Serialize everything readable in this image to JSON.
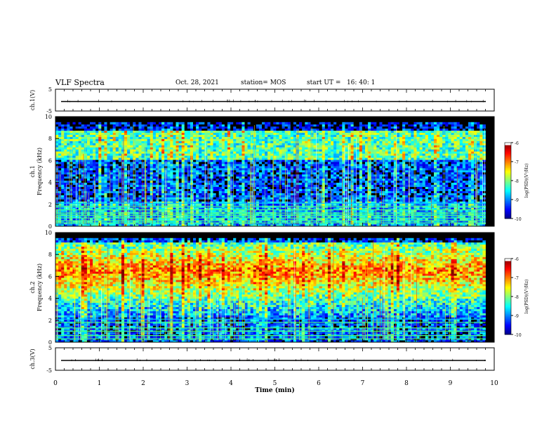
{
  "header": {
    "title": "VLF Spectra",
    "date": "Oct. 28, 2021",
    "station": "station= MOS",
    "start_ut": "start UT =   16: 40: 1"
  },
  "chart_data": [
    {
      "type": "line",
      "panel": "ch1-waveform",
      "ylabel": "ch.1(V)",
      "ylim": [
        -5,
        5
      ],
      "yticks": [
        5,
        -5
      ],
      "xlim": [
        0,
        10
      ],
      "series": [
        {
          "values_summary": "flat near 0 V with small spikes"
        }
      ]
    },
    {
      "type": "heatmap",
      "panel": "ch1-spectrogram",
      "ylabel": "ch.1 Frequency (kHz)",
      "ylim": [
        0,
        10
      ],
      "yticks": [
        0,
        2,
        4,
        6,
        8,
        10
      ],
      "xlim": [
        0,
        10
      ],
      "data_extent_min": 9.8,
      "colorbar": {
        "label": "log(PSD)(V²/Hz)",
        "range": [
          -10,
          -6
        ],
        "ticks": [
          -6,
          -7,
          -8,
          -9,
          -10
        ]
      },
      "bands_khz": [
        0.3,
        0.5,
        0.75,
        1.0,
        1.2,
        1.5,
        1.8,
        2.1
      ],
      "dominant_band_khz": [
        6,
        9
      ]
    },
    {
      "type": "heatmap",
      "panel": "ch2-spectrogram",
      "ylabel": "ch.2 Frequency (kHz)",
      "ylim": [
        0,
        10
      ],
      "yticks": [
        0,
        2,
        4,
        6,
        8,
        10
      ],
      "xlim": [
        0,
        10
      ],
      "data_extent_min": 9.8,
      "colorbar": {
        "label": "log(PSD)(V²/Hz)",
        "range": [
          -10,
          -6
        ],
        "ticks": [
          -6,
          -7,
          -8,
          -9,
          -10
        ]
      },
      "bands_khz": [
        0.3,
        0.6,
        1.0,
        1.3,
        1.8,
        2.1
      ],
      "dominant_band_khz": [
        5,
        8
      ]
    },
    {
      "type": "line",
      "panel": "ch3-waveform",
      "ylabel": "ch.3(V)",
      "ylim": [
        -5,
        5
      ],
      "yticks": [
        5,
        -5
      ],
      "xlim": [
        0,
        10
      ],
      "xticks": [
        0,
        1,
        2,
        3,
        4,
        5,
        6,
        7,
        8,
        9,
        10
      ],
      "xlabel": "Time (min)",
      "series": [
        {
          "values_summary": "flat near 0 V"
        }
      ]
    }
  ]
}
